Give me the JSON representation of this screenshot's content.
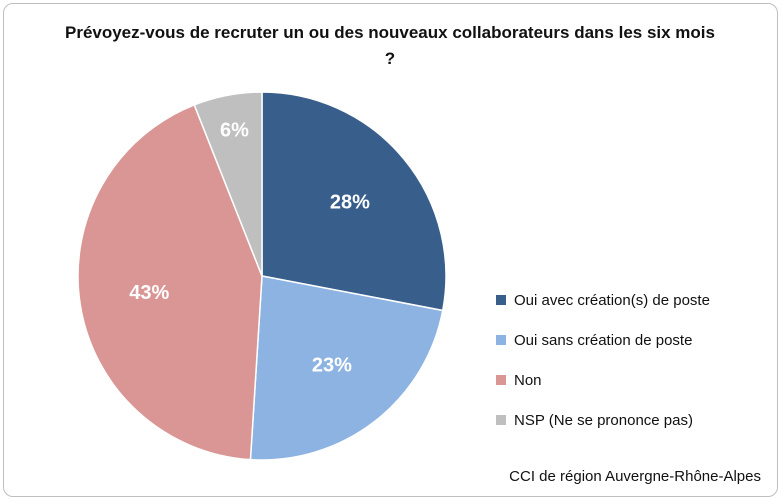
{
  "chart_data": {
    "type": "pie",
    "title": "Prévoyez-vous de recruter un ou des nouveaux collaborateurs dans les six mois ?",
    "categories": [
      "Oui avec création(s) de poste",
      "Oui sans création de poste",
      "Non",
      "NSP (Ne se prononce pas)"
    ],
    "values": [
      28,
      23,
      43,
      6
    ],
    "labels": [
      "28%",
      "23%",
      "43%",
      "6%"
    ],
    "colors": [
      "#385f8c",
      "#8db3e2",
      "#d99694",
      "#bfbfbf"
    ],
    "legend_position": "right"
  },
  "source": "CCI de région Auvergne-Rhône-Alpes"
}
